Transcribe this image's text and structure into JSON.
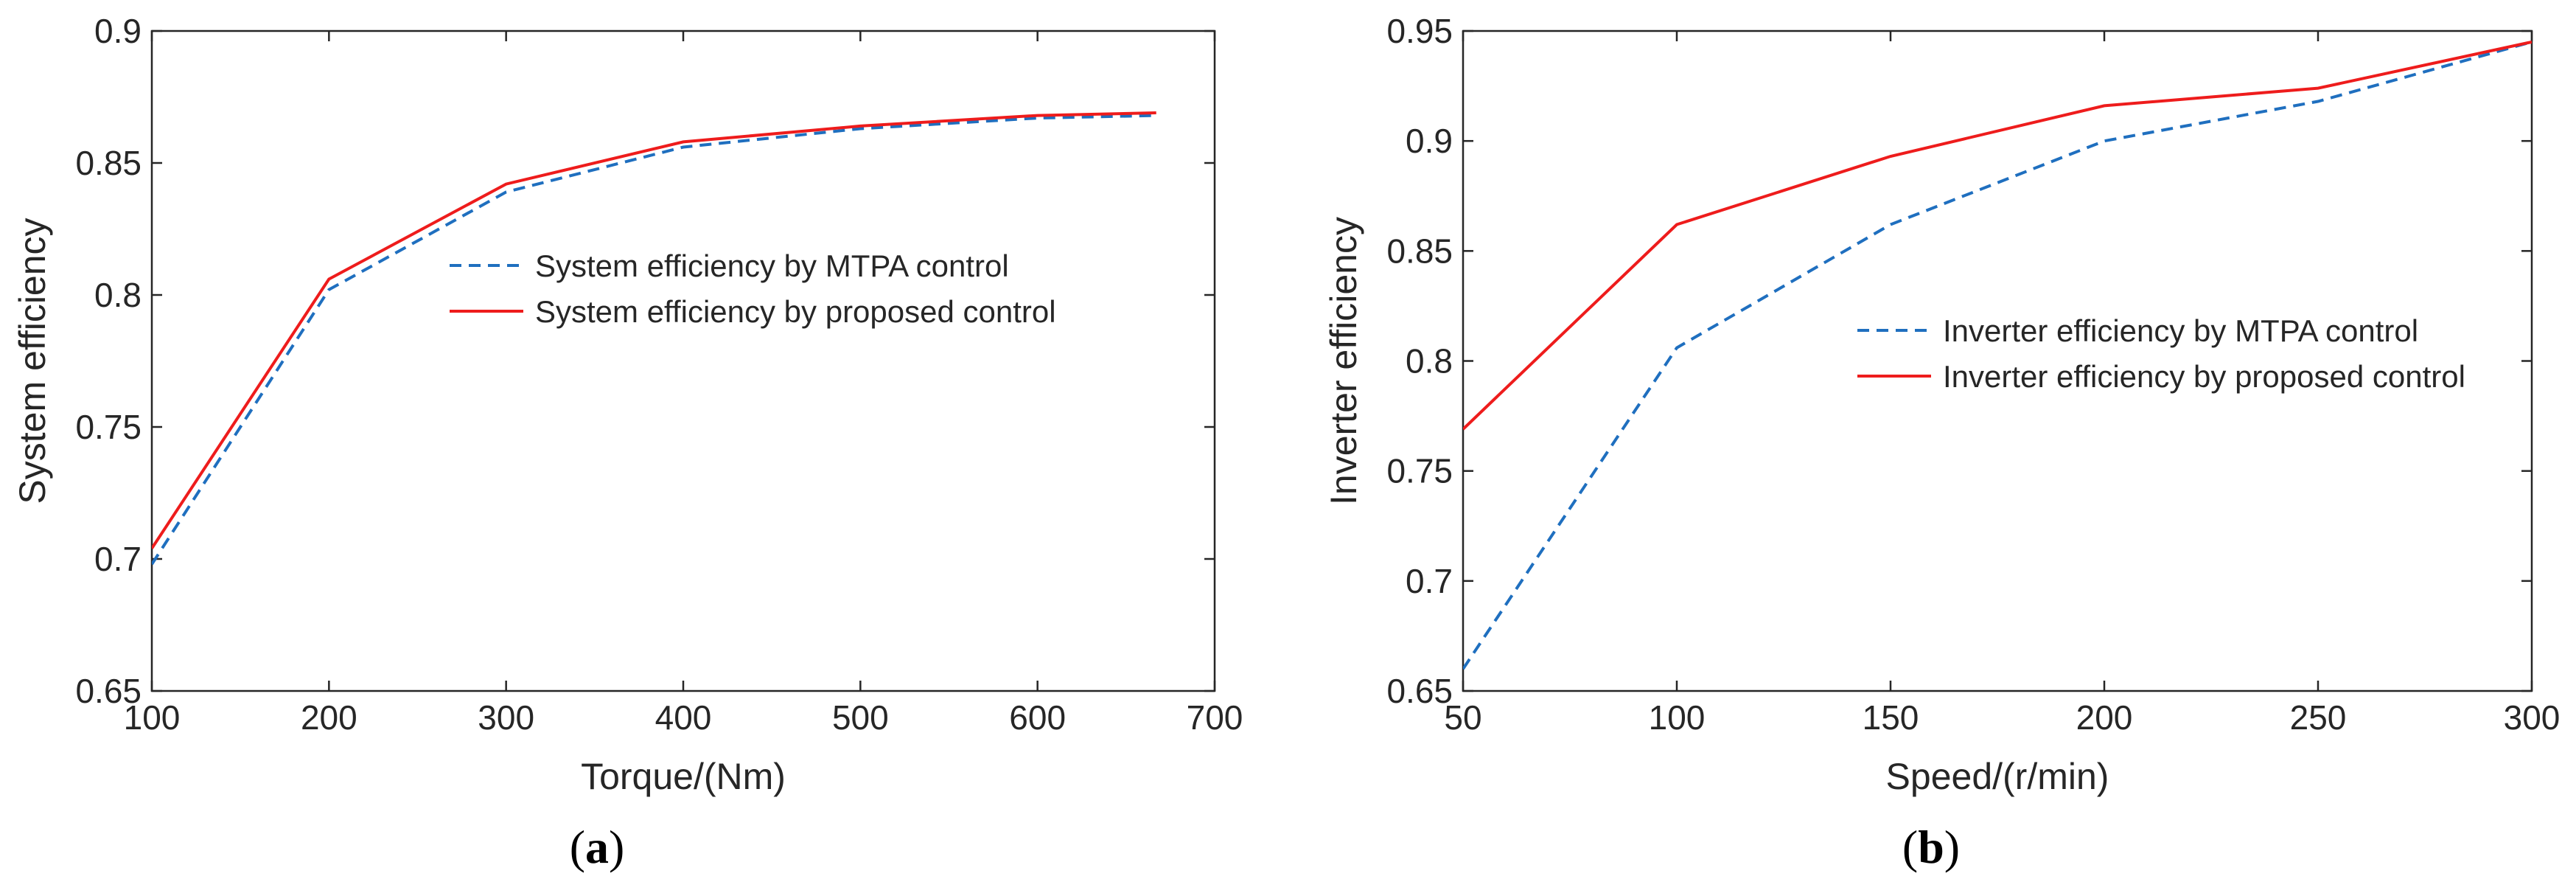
{
  "chart_data": [
    {
      "type": "line",
      "panel": "(a)",
      "caption": {
        "open": "(",
        "letter": "a",
        "close": ")"
      },
      "xlabel": "Torque/(Nm)",
      "ylabel": "System efficiency",
      "xlim": [
        100,
        700
      ],
      "ylim": [
        0.65,
        0.9
      ],
      "xticks": [
        100,
        200,
        300,
        400,
        500,
        600,
        700
      ],
      "yticks": [
        0.65,
        0.7,
        0.75,
        0.8,
        0.85,
        0.9
      ],
      "grid": false,
      "legend_position": "upper-middle",
      "series": [
        {
          "name": "System efficiency by MTPA control",
          "style": "dashed",
          "color": "#1f6fbf",
          "x": [
            100,
            200,
            300,
            400,
            500,
            600,
            667
          ],
          "y": [
            0.698,
            0.802,
            0.839,
            0.856,
            0.863,
            0.867,
            0.868
          ]
        },
        {
          "name": "System efficiency by proposed control",
          "style": "solid",
          "color": "#ee1c1c",
          "x": [
            100,
            200,
            300,
            400,
            500,
            600,
            667
          ],
          "y": [
            0.704,
            0.806,
            0.842,
            0.858,
            0.864,
            0.868,
            0.869
          ]
        }
      ]
    },
    {
      "type": "line",
      "panel": "(b)",
      "caption": {
        "open": "(",
        "letter": "b",
        "close": ")"
      },
      "xlabel": "Speed/(r/min)",
      "ylabel": "Inverter efficiency",
      "xlim": [
        50,
        300
      ],
      "ylim": [
        0.65,
        0.95
      ],
      "xticks": [
        50,
        100,
        150,
        200,
        250,
        300
      ],
      "xtick_labels": [
        "50",
        "100",
        "150",
        "200",
        "250",
        "300"
      ],
      "yticks": [
        0.65,
        0.7,
        0.75,
        0.8,
        0.85,
        0.9,
        0.95
      ],
      "grid": false,
      "legend_position": "center-right",
      "series": [
        {
          "name": "Inverter efficiency by MTPA control",
          "style": "dashed",
          "color": "#1f6fbf",
          "x": [
            50,
            100,
            150,
            200,
            250,
            300
          ],
          "y": [
            0.66,
            0.806,
            0.862,
            0.9,
            0.918,
            0.945
          ]
        },
        {
          "name": "Inverter efficiency by proposed control",
          "style": "solid",
          "color": "#ee1c1c",
          "x": [
            50,
            100,
            150,
            200,
            250,
            300
          ],
          "y": [
            0.769,
            0.862,
            0.893,
            0.916,
            0.924,
            0.945
          ]
        }
      ]
    }
  ]
}
